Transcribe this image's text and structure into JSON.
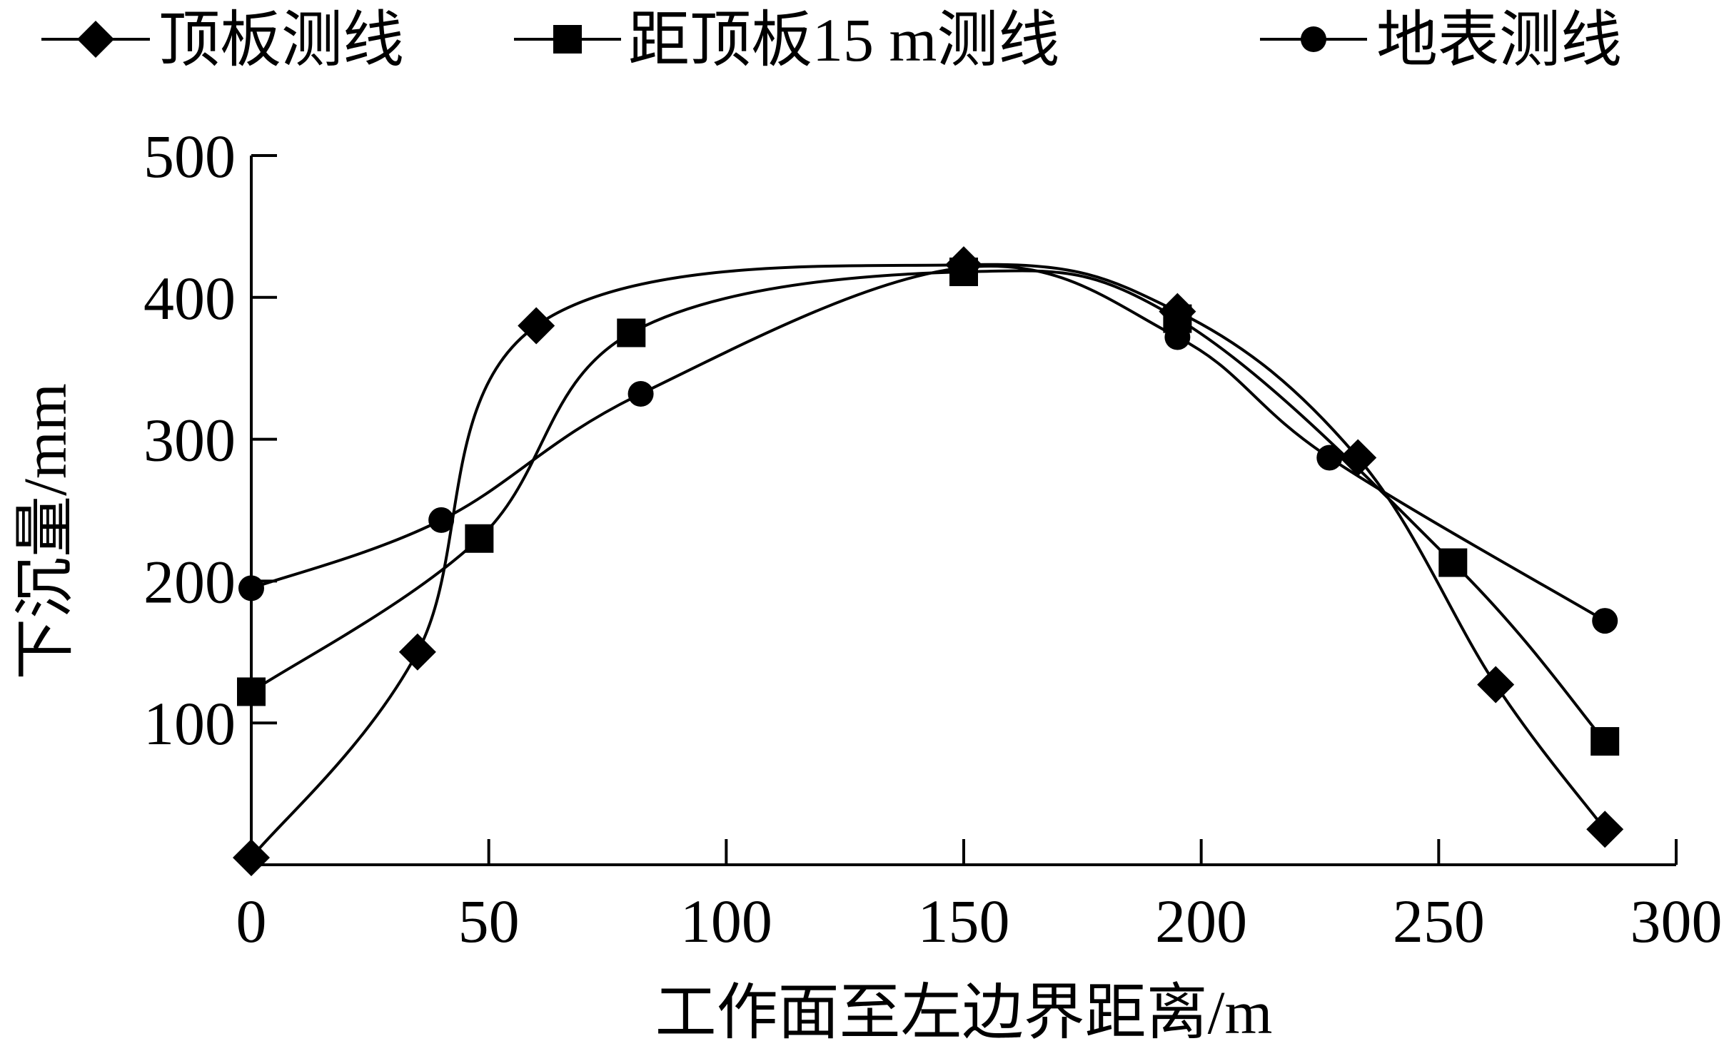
{
  "chart_data": {
    "type": "line",
    "xlabel": "工作面至左边界距离/m",
    "ylabel": "下沉量/mm",
    "xlim": [
      0,
      300
    ],
    "ylim": [
      0,
      500
    ],
    "x_ticks": [
      0,
      50,
      100,
      150,
      200,
      250,
      300
    ],
    "y_ticks": [
      100,
      200,
      300,
      400,
      500
    ],
    "legend_position": "top",
    "grid": false,
    "series": [
      {
        "name": "顶板测线",
        "marker": "diamond",
        "points": [
          [
            0,
            5
          ],
          [
            35,
            150
          ],
          [
            60,
            380
          ],
          [
            150,
            423
          ],
          [
            195,
            390
          ],
          [
            233,
            287
          ],
          [
            262,
            127
          ],
          [
            285,
            25
          ]
        ]
      },
      {
        "name": "距顶板15 m测线",
        "marker": "square",
        "points": [
          [
            0,
            122
          ],
          [
            48,
            230
          ],
          [
            80,
            375
          ],
          [
            150,
            418
          ],
          [
            195,
            385
          ],
          [
            253,
            213
          ],
          [
            285,
            87
          ]
        ]
      },
      {
        "name": "地表测线",
        "marker": "circle",
        "points": [
          [
            0,
            195
          ],
          [
            40,
            243
          ],
          [
            82,
            332
          ],
          [
            150,
            421
          ],
          [
            195,
            372
          ],
          [
            227,
            287
          ],
          [
            285,
            172
          ]
        ]
      }
    ]
  }
}
